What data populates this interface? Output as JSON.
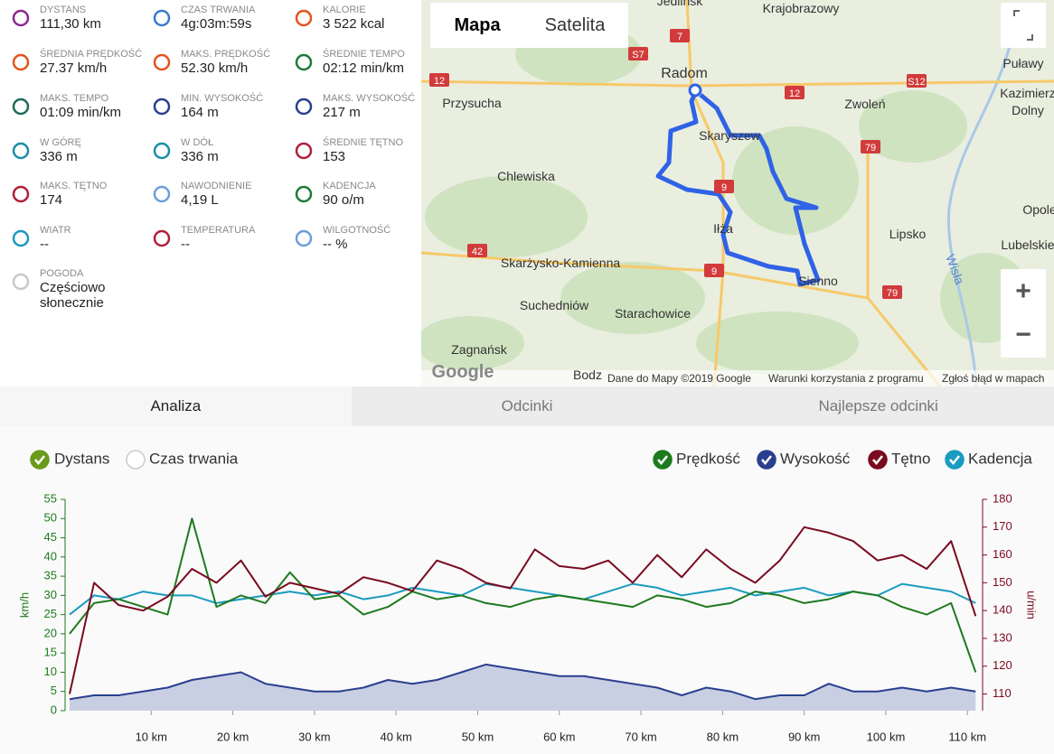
{
  "stats": [
    {
      "label": "DYSTANS",
      "value": "111,30 km"
    },
    {
      "label": "CZAS TRWANIA",
      "value": "4g:03m:59s"
    },
    {
      "label": "KALORIE",
      "value": "3 522 kcal"
    },
    {
      "label": "ŚREDNIA PRĘDKOŚĆ",
      "value": "27.37 km/h"
    },
    {
      "label": "MAKS. PRĘDKOŚĆ",
      "value": "52.30 km/h"
    },
    {
      "label": "ŚREDNIE TEMPO",
      "value": "02:12 min/km"
    },
    {
      "label": "MAKS. TEMPO",
      "value": "01:09 min/km"
    },
    {
      "label": "MIN. WYSOKOŚĆ",
      "value": "164 m"
    },
    {
      "label": "MAKS. WYSOKOŚĆ",
      "value": "217 m"
    },
    {
      "label": "W GÓRĘ",
      "value": "336 m"
    },
    {
      "label": "W DÓŁ",
      "value": "336 m"
    },
    {
      "label": "ŚREDNIE TĘTNO",
      "value": "153"
    },
    {
      "label": "MAKS. TĘTNO",
      "value": "174"
    },
    {
      "label": "NAWODNIENIE",
      "value": "4,19 L"
    },
    {
      "label": "KADENCJA",
      "value": "90 o/m"
    },
    {
      "label": "WIATR",
      "value": "--"
    },
    {
      "label": "TEMPERATURA",
      "value": "--"
    },
    {
      "label": "WILGOTNOŚĆ",
      "value": "-- %"
    },
    {
      "label": "POGODA",
      "value": "Częściowo słonecznie"
    }
  ],
  "map": {
    "buttons": [
      "Mapa",
      "Satelita"
    ],
    "zoom": [
      "+",
      "−"
    ],
    "places": [
      "Jedlińsk",
      "Krajobrazowy",
      "Radom",
      "Puławy",
      "Przysucha",
      "Zwoleń",
      "Kazimierz",
      "Dolny",
      "Skaryszew",
      "Chlewiska",
      "Iłża",
      "Lipsko",
      "Opole",
      "Lubelskie",
      "Skarżysko-Kamienna",
      "Sienno",
      "Suchedniów",
      "Starachowice",
      "Zagnańsk",
      "Wisła",
      "Bodz"
    ],
    "roads": [
      "S7",
      "7",
      "12",
      "12",
      "S12",
      "79",
      "9",
      "42",
      "9",
      "79"
    ],
    "logo": "Google",
    "attribution": [
      "Dane do Mapy ©2019 Google",
      "Warunki korzystania z programu",
      "Zgłoś błąd w mapach"
    ]
  },
  "tabs": [
    "Analiza",
    "Odcinki",
    "Najlepsze odcinki"
  ],
  "x_modes": [
    "Dystans",
    "Czas trwania"
  ],
  "chart_data": {
    "type": "line",
    "y_label": "km/h",
    "y2_label": "u/min",
    "x": [
      0,
      3,
      6,
      9,
      12,
      15,
      18,
      21,
      24,
      27,
      30,
      33,
      36,
      39,
      42,
      45,
      48,
      51,
      54,
      57,
      60,
      63,
      66,
      69,
      72,
      75,
      78,
      81,
      84,
      87,
      90,
      93,
      96,
      99,
      102,
      105,
      108,
      111
    ],
    "xlim": [
      0,
      111.3
    ],
    "xticks": [
      {
        "value": 10,
        "label": "10 km"
      },
      {
        "value": 20,
        "label": "20 km"
      },
      {
        "value": 30,
        "label": "30 km"
      },
      {
        "value": 40,
        "label": "40 km"
      },
      {
        "value": 50,
        "label": "50 km"
      },
      {
        "value": 60,
        "label": "60 km"
      },
      {
        "value": 70,
        "label": "70 km"
      },
      {
        "value": 80,
        "label": "80 km"
      },
      {
        "value": 90,
        "label": "90 km"
      },
      {
        "value": 100,
        "label": "100 km"
      },
      {
        "value": 110,
        "label": "110 km"
      }
    ],
    "ylim": [
      0,
      55
    ],
    "yticks": [
      0,
      5,
      10,
      15,
      20,
      25,
      30,
      35,
      40,
      45,
      50,
      55
    ],
    "y2lim": [
      104,
      180
    ],
    "y2ticks": [
      110,
      120,
      130,
      140,
      150,
      160,
      170,
      180
    ],
    "series": [
      {
        "name": "Wysokość",
        "color": "#2a3f8f",
        "area": true,
        "values": [
          3,
          4,
          4,
          5,
          6,
          8,
          9,
          10,
          7,
          6,
          5,
          5,
          6,
          8,
          7,
          8,
          10,
          12,
          11,
          10,
          9,
          9,
          8,
          7,
          6,
          4,
          6,
          5,
          3,
          4,
          4,
          7,
          5,
          5,
          6,
          5,
          6,
          5
        ]
      },
      {
        "name": "Kadencja",
        "color": "#1a9bc0",
        "values": [
          25,
          30,
          29,
          31,
          30,
          30,
          28,
          29,
          30,
          31,
          30,
          31,
          29,
          30,
          32,
          31,
          30,
          33,
          32,
          31,
          30,
          29,
          31,
          33,
          32,
          30,
          31,
          32,
          30,
          31,
          32,
          30,
          31,
          30,
          33,
          32,
          31,
          28
        ]
      },
      {
        "name": "Prędkość",
        "color": "#1e7a1e",
        "values": [
          20,
          28,
          29,
          27,
          25,
          50,
          27,
          30,
          28,
          36,
          29,
          30,
          25,
          27,
          31,
          29,
          30,
          28,
          27,
          29,
          30,
          29,
          28,
          27,
          30,
          29,
          27,
          28,
          31,
          30,
          28,
          29,
          31,
          30,
          27,
          25,
          28,
          10
        ]
      },
      {
        "name": "Tętno",
        "color": "#7a0a20",
        "axis": "y2",
        "values": [
          110,
          150,
          142,
          140,
          145,
          155,
          150,
          158,
          145,
          150,
          148,
          146,
          152,
          150,
          147,
          158,
          155,
          150,
          148,
          162,
          156,
          155,
          158,
          150,
          160,
          152,
          162,
          155,
          150,
          158,
          170,
          168,
          165,
          158,
          160,
          155,
          165,
          138
        ]
      }
    ],
    "legend_order": [
      2,
      0,
      3,
      1
    ]
  }
}
